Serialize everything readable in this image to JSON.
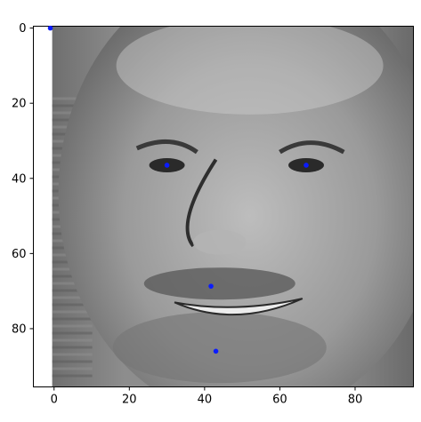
{
  "chart_data": {
    "type": "scatter",
    "title": "",
    "xlabel": "",
    "ylabel": "",
    "xlim": [
      -5.5,
      95.5
    ],
    "ylim": [
      95.5,
      -0.5
    ],
    "y_inverted": true,
    "grid": false,
    "x_ticks": [
      0,
      20,
      40,
      60,
      80
    ],
    "y_ticks": [
      0,
      20,
      40,
      60,
      80
    ],
    "background_image": {
      "kind": "grayscale-photo",
      "description_icon": "face-image",
      "x_extent": [
        -0.5,
        95.5
      ],
      "y_extent": [
        95.5,
        -0.5
      ]
    },
    "series": [
      {
        "marker_color": "#0b1cff",
        "points": [
          {
            "x": -1,
            "y": 0
          },
          {
            "x": 30,
            "y": 36.5
          },
          {
            "x": 67,
            "y": 36.5
          },
          {
            "x": 41.7,
            "y": 68.7
          },
          {
            "x": 43,
            "y": 86
          }
        ]
      }
    ]
  }
}
